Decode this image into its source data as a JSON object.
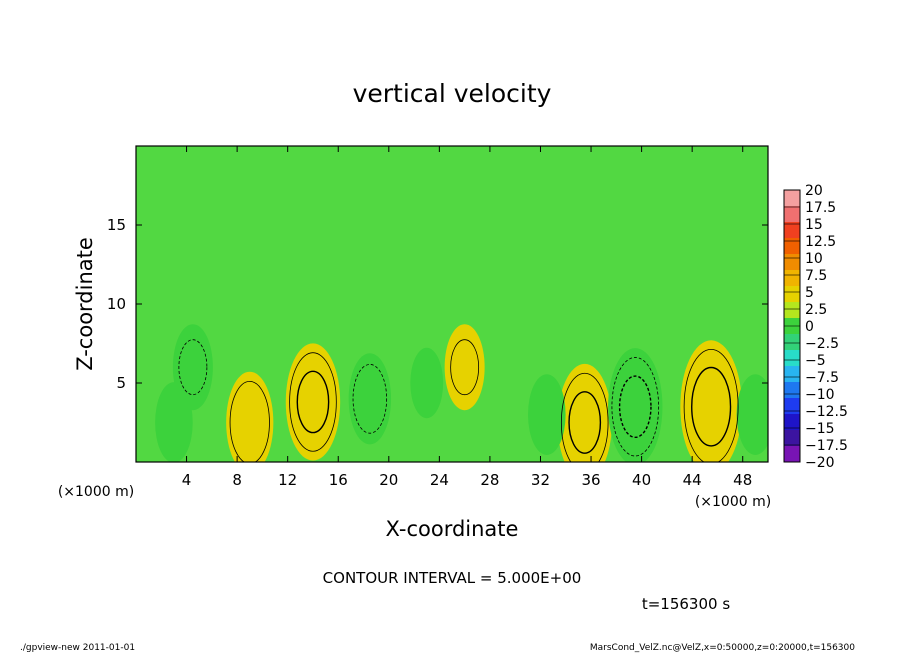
{
  "chart_data": {
    "type": "heatmap",
    "title": "vertical velocity",
    "xlabel": "X-coordinate",
    "ylabel": "Z-coordinate",
    "x_unit_label": "(×1000 m)",
    "xlim": [
      0,
      50
    ],
    "ylim": [
      0,
      20
    ],
    "x_ticks": [
      4,
      8,
      12,
      16,
      20,
      24,
      28,
      32,
      36,
      40,
      44,
      48
    ],
    "y_ticks": [
      5,
      10,
      15
    ],
    "colorbar": {
      "labels": [
        "20",
        "17.5",
        "15",
        "12.5",
        "10",
        "7.5",
        "5",
        "2.5",
        "0",
        "−2.5",
        "−5",
        "−7.5",
        "−10",
        "−12.5",
        "−15",
        "−17.5",
        "−20"
      ],
      "levels": [
        20,
        17.5,
        15,
        12.5,
        10,
        7.5,
        5,
        2.5,
        0,
        -2.5,
        -5,
        -7.5,
        -10,
        -12.5,
        -15,
        -17.5,
        -20
      ],
      "colors": [
        "#f4a0a0",
        "#f07070",
        "#f04020",
        "#f06000",
        "#f08c00",
        "#f0b400",
        "#e6d200",
        "#b4e61e",
        "#3cd23c",
        "#32d278",
        "#28dcc8",
        "#28b4f0",
        "#1e78f0",
        "#1e3cf0",
        "#1e14c8",
        "#3c14a0",
        "#7814b4"
      ]
    },
    "extrema": [
      {
        "x": 3,
        "z": 2.5,
        "value": -4
      },
      {
        "x": 4.5,
        "z": 6,
        "value": -5
      },
      {
        "x": 9,
        "z": 2.5,
        "value": 8
      },
      {
        "x": 14,
        "z": 3.8,
        "value": 11
      },
      {
        "x": 18.5,
        "z": 4,
        "value": -6
      },
      {
        "x": 26,
        "z": 6,
        "value": 5
      },
      {
        "x": 23,
        "z": 5,
        "value": -2
      },
      {
        "x": 35.5,
        "z": 2.5,
        "value": 11
      },
      {
        "x": 32.5,
        "z": 3,
        "value": -4
      },
      {
        "x": 39.5,
        "z": 3.5,
        "value": -11
      },
      {
        "x": 45.5,
        "z": 3.5,
        "value": 14
      },
      {
        "x": 49,
        "z": 3,
        "value": -4
      }
    ],
    "contour_interval": "CONTOUR INTERVAL = 5.000E+00",
    "time_label": "t=156300 s"
  },
  "footer": {
    "left": "./gpview-new  2011-01-01",
    "right": "MarsCond_VelZ.nc@VelZ,x=0:50000,z=0:20000,t=156300"
  }
}
